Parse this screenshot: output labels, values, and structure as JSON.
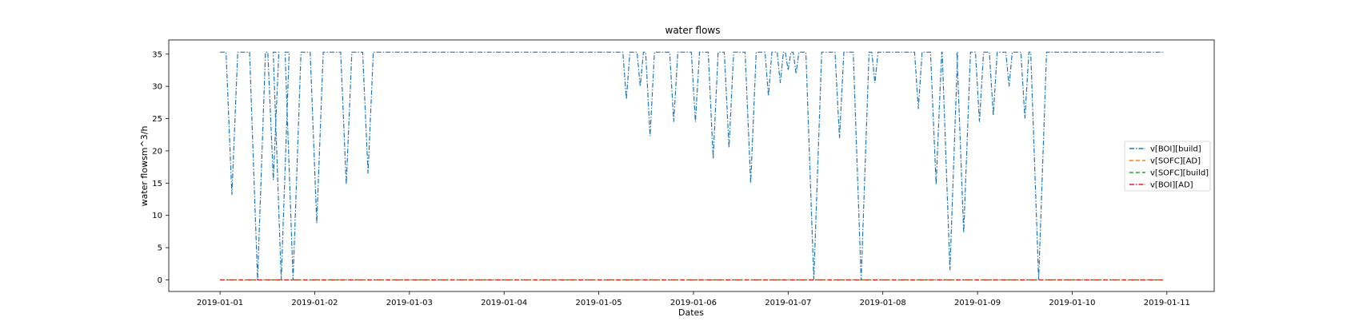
{
  "chart_data": {
    "type": "line",
    "title": "water flows",
    "xlabel": "Dates",
    "ylabel": "water flowsm^3/h",
    "x_range": [
      "2019-01-01T00:00",
      "2019-01-10T23:00"
    ],
    "xlim": [
      "2018-12-31T11:00",
      "2019-01-11T12:00"
    ],
    "ylim": [
      -1.8,
      37.2
    ],
    "x_ticks": [
      "2019-01-01",
      "2019-01-02",
      "2019-01-03",
      "2019-01-04",
      "2019-01-05",
      "2019-01-06",
      "2019-01-07",
      "2019-01-08",
      "2019-01-09",
      "2019-01-10",
      "2019-01-11"
    ],
    "y_ticks": [
      0,
      5,
      10,
      15,
      20,
      25,
      30,
      35
    ],
    "grid": false,
    "legend_position": "center-right",
    "series": [
      {
        "name": "v[BOI][build]",
        "color": "#1f77b4",
        "style": "dashdot",
        "max_value": 35.3,
        "dips": [
          {
            "x": "2019-01-01T03:00",
            "min": 13.2
          },
          {
            "x": "2019-01-01T09:30",
            "min": 0
          },
          {
            "x": "2019-01-01T13:30",
            "min": 15.5
          },
          {
            "x": "2019-01-01T15:30",
            "min": 0
          },
          {
            "x": "2019-01-01T18:30",
            "min": 0
          },
          {
            "x": "2019-01-02T00:30",
            "min": 8.8
          },
          {
            "x": "2019-01-02T08:00",
            "min": 14.8
          },
          {
            "x": "2019-01-02T13:30",
            "min": 16.5
          },
          {
            "x": "2019-01-05T07:00",
            "min": 28.0
          },
          {
            "x": "2019-01-05T10:30",
            "min": 30.0
          },
          {
            "x": "2019-01-05T13:00",
            "min": 22.3
          },
          {
            "x": "2019-01-05T19:00",
            "min": 24.5
          },
          {
            "x": "2019-01-06T00:30",
            "min": 24.5
          },
          {
            "x": "2019-01-06T05:00",
            "min": 18.8
          },
          {
            "x": "2019-01-06T09:00",
            "min": 20.5
          },
          {
            "x": "2019-01-06T14:30",
            "min": 15.0
          },
          {
            "x": "2019-01-06T19:00",
            "min": 28.5
          },
          {
            "x": "2019-01-06T22:00",
            "min": 30.5
          },
          {
            "x": "2019-01-07T00:00",
            "min": 32.5
          },
          {
            "x": "2019-01-07T02:00",
            "min": 32.0
          },
          {
            "x": "2019-01-07T06:30",
            "min": 0
          },
          {
            "x": "2019-01-07T13:00",
            "min": 22.0
          },
          {
            "x": "2019-01-07T18:30",
            "min": 0
          },
          {
            "x": "2019-01-07T22:00",
            "min": 30.5
          },
          {
            "x": "2019-01-08T09:00",
            "min": 26.5
          },
          {
            "x": "2019-01-08T13:30",
            "min": 14.8
          },
          {
            "x": "2019-01-08T17:00",
            "min": 1.5
          },
          {
            "x": "2019-01-08T20:30",
            "min": 7.3
          },
          {
            "x": "2019-01-09T00:30",
            "min": 24.5
          },
          {
            "x": "2019-01-09T04:00",
            "min": 25.5
          },
          {
            "x": "2019-01-09T08:00",
            "min": 30.0
          },
          {
            "x": "2019-01-09T12:00",
            "min": 25.0
          },
          {
            "x": "2019-01-09T15:30",
            "min": 0
          }
        ]
      },
      {
        "name": "v[SOFC][AD]",
        "color": "#ff7f0e",
        "style": "dashed",
        "constant": 0
      },
      {
        "name": "v[SOFC][build]",
        "color": "#2ca02c",
        "style": "dashed",
        "constant": 0
      },
      {
        "name": "v[BOI][AD]",
        "color": "#d62728",
        "style": "dashdot",
        "constant": 0
      }
    ]
  }
}
